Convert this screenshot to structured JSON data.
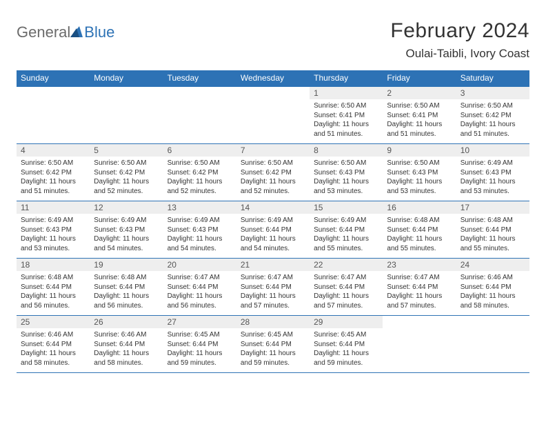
{
  "logo": {
    "text1": "General",
    "text2": "Blue"
  },
  "title": "February 2024",
  "location": "Oulai-Taibli, Ivory Coast",
  "colors": {
    "header_bg": "#2d72b5",
    "header_text": "#ffffff",
    "daynum_bg": "#eeeeee",
    "border": "#2d72b5",
    "text": "#333333",
    "logo_gray": "#6b6b6b",
    "logo_blue": "#2d72b5"
  },
  "weekdays": [
    "Sunday",
    "Monday",
    "Tuesday",
    "Wednesday",
    "Thursday",
    "Friday",
    "Saturday"
  ],
  "weeks": [
    [
      {
        "n": "",
        "sr": "",
        "ss": "",
        "dl": ""
      },
      {
        "n": "",
        "sr": "",
        "ss": "",
        "dl": ""
      },
      {
        "n": "",
        "sr": "",
        "ss": "",
        "dl": ""
      },
      {
        "n": "",
        "sr": "",
        "ss": "",
        "dl": ""
      },
      {
        "n": "1",
        "sr": "Sunrise: 6:50 AM",
        "ss": "Sunset: 6:41 PM",
        "dl": "Daylight: 11 hours and 51 minutes."
      },
      {
        "n": "2",
        "sr": "Sunrise: 6:50 AM",
        "ss": "Sunset: 6:41 PM",
        "dl": "Daylight: 11 hours and 51 minutes."
      },
      {
        "n": "3",
        "sr": "Sunrise: 6:50 AM",
        "ss": "Sunset: 6:42 PM",
        "dl": "Daylight: 11 hours and 51 minutes."
      }
    ],
    [
      {
        "n": "4",
        "sr": "Sunrise: 6:50 AM",
        "ss": "Sunset: 6:42 PM",
        "dl": "Daylight: 11 hours and 51 minutes."
      },
      {
        "n": "5",
        "sr": "Sunrise: 6:50 AM",
        "ss": "Sunset: 6:42 PM",
        "dl": "Daylight: 11 hours and 52 minutes."
      },
      {
        "n": "6",
        "sr": "Sunrise: 6:50 AM",
        "ss": "Sunset: 6:42 PM",
        "dl": "Daylight: 11 hours and 52 minutes."
      },
      {
        "n": "7",
        "sr": "Sunrise: 6:50 AM",
        "ss": "Sunset: 6:42 PM",
        "dl": "Daylight: 11 hours and 52 minutes."
      },
      {
        "n": "8",
        "sr": "Sunrise: 6:50 AM",
        "ss": "Sunset: 6:43 PM",
        "dl": "Daylight: 11 hours and 53 minutes."
      },
      {
        "n": "9",
        "sr": "Sunrise: 6:50 AM",
        "ss": "Sunset: 6:43 PM",
        "dl": "Daylight: 11 hours and 53 minutes."
      },
      {
        "n": "10",
        "sr": "Sunrise: 6:49 AM",
        "ss": "Sunset: 6:43 PM",
        "dl": "Daylight: 11 hours and 53 minutes."
      }
    ],
    [
      {
        "n": "11",
        "sr": "Sunrise: 6:49 AM",
        "ss": "Sunset: 6:43 PM",
        "dl": "Daylight: 11 hours and 53 minutes."
      },
      {
        "n": "12",
        "sr": "Sunrise: 6:49 AM",
        "ss": "Sunset: 6:43 PM",
        "dl": "Daylight: 11 hours and 54 minutes."
      },
      {
        "n": "13",
        "sr": "Sunrise: 6:49 AM",
        "ss": "Sunset: 6:43 PM",
        "dl": "Daylight: 11 hours and 54 minutes."
      },
      {
        "n": "14",
        "sr": "Sunrise: 6:49 AM",
        "ss": "Sunset: 6:44 PM",
        "dl": "Daylight: 11 hours and 54 minutes."
      },
      {
        "n": "15",
        "sr": "Sunrise: 6:49 AM",
        "ss": "Sunset: 6:44 PM",
        "dl": "Daylight: 11 hours and 55 minutes."
      },
      {
        "n": "16",
        "sr": "Sunrise: 6:48 AM",
        "ss": "Sunset: 6:44 PM",
        "dl": "Daylight: 11 hours and 55 minutes."
      },
      {
        "n": "17",
        "sr": "Sunrise: 6:48 AM",
        "ss": "Sunset: 6:44 PM",
        "dl": "Daylight: 11 hours and 55 minutes."
      }
    ],
    [
      {
        "n": "18",
        "sr": "Sunrise: 6:48 AM",
        "ss": "Sunset: 6:44 PM",
        "dl": "Daylight: 11 hours and 56 minutes."
      },
      {
        "n": "19",
        "sr": "Sunrise: 6:48 AM",
        "ss": "Sunset: 6:44 PM",
        "dl": "Daylight: 11 hours and 56 minutes."
      },
      {
        "n": "20",
        "sr": "Sunrise: 6:47 AM",
        "ss": "Sunset: 6:44 PM",
        "dl": "Daylight: 11 hours and 56 minutes."
      },
      {
        "n": "21",
        "sr": "Sunrise: 6:47 AM",
        "ss": "Sunset: 6:44 PM",
        "dl": "Daylight: 11 hours and 57 minutes."
      },
      {
        "n": "22",
        "sr": "Sunrise: 6:47 AM",
        "ss": "Sunset: 6:44 PM",
        "dl": "Daylight: 11 hours and 57 minutes."
      },
      {
        "n": "23",
        "sr": "Sunrise: 6:47 AM",
        "ss": "Sunset: 6:44 PM",
        "dl": "Daylight: 11 hours and 57 minutes."
      },
      {
        "n": "24",
        "sr": "Sunrise: 6:46 AM",
        "ss": "Sunset: 6:44 PM",
        "dl": "Daylight: 11 hours and 58 minutes."
      }
    ],
    [
      {
        "n": "25",
        "sr": "Sunrise: 6:46 AM",
        "ss": "Sunset: 6:44 PM",
        "dl": "Daylight: 11 hours and 58 minutes."
      },
      {
        "n": "26",
        "sr": "Sunrise: 6:46 AM",
        "ss": "Sunset: 6:44 PM",
        "dl": "Daylight: 11 hours and 58 minutes."
      },
      {
        "n": "27",
        "sr": "Sunrise: 6:45 AM",
        "ss": "Sunset: 6:44 PM",
        "dl": "Daylight: 11 hours and 59 minutes."
      },
      {
        "n": "28",
        "sr": "Sunrise: 6:45 AM",
        "ss": "Sunset: 6:44 PM",
        "dl": "Daylight: 11 hours and 59 minutes."
      },
      {
        "n": "29",
        "sr": "Sunrise: 6:45 AM",
        "ss": "Sunset: 6:44 PM",
        "dl": "Daylight: 11 hours and 59 minutes."
      },
      {
        "n": "",
        "sr": "",
        "ss": "",
        "dl": ""
      },
      {
        "n": "",
        "sr": "",
        "ss": "",
        "dl": ""
      }
    ]
  ]
}
